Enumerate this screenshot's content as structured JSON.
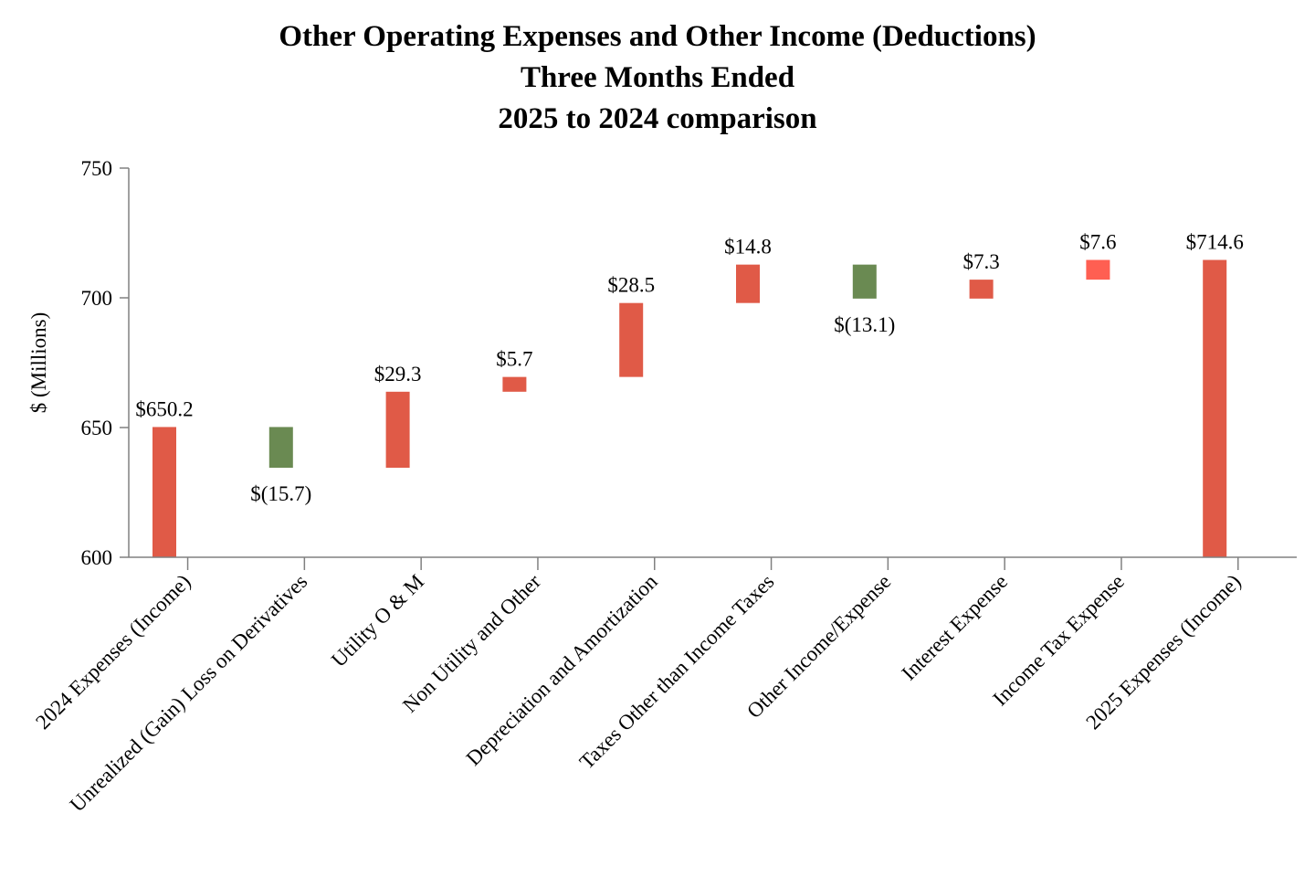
{
  "chart_data": {
    "type": "waterfall",
    "title": [
      "Other Operating Expenses and Other Income (Deductions)",
      "Three Months Ended",
      "2025 to 2024 comparison"
    ],
    "ylabel": "$ (Millions)",
    "xlabel": "",
    "ylim": [
      600,
      750
    ],
    "yticks": [
      600,
      650,
      700,
      750
    ],
    "grid": false,
    "legend": "none",
    "categories": [
      "2024 Expenses (Income)",
      "Unrealized (Gain) Loss on Derivatives",
      "Utility O & M",
      "Non Utility and Other",
      "Depreciation and Amortization",
      "Taxes Other than Income Taxes",
      "Other Income/Expense",
      "Interest Expense",
      "Income Tax Expense",
      "2025 Expenses (Income)"
    ],
    "bars": [
      {
        "kind": "total",
        "value": 650.2,
        "label": "$650.2",
        "color": "#e05a47"
      },
      {
        "kind": "delta",
        "value": -15.7,
        "label": "$(15.7)",
        "color": "#6a8a52"
      },
      {
        "kind": "delta",
        "value": 29.3,
        "label": "$29.3",
        "color": "#e05a47"
      },
      {
        "kind": "delta",
        "value": 5.7,
        "label": "$5.7",
        "color": "#e05a47"
      },
      {
        "kind": "delta",
        "value": 28.5,
        "label": "$28.5",
        "color": "#e05a47"
      },
      {
        "kind": "delta",
        "value": 14.8,
        "label": "$14.8",
        "color": "#e05a47"
      },
      {
        "kind": "delta",
        "value": -13.1,
        "label": "$(13.1)",
        "color": "#6a8a52"
      },
      {
        "kind": "delta",
        "value": 7.3,
        "label": "$7.3",
        "color": "#e05a47"
      },
      {
        "kind": "delta",
        "value": 7.6,
        "label": "$7.6",
        "color": "#ff5f52"
      },
      {
        "kind": "total",
        "value": 714.6,
        "label": "$714.6",
        "color": "#e05a47"
      }
    ],
    "axis_color": "#808080"
  }
}
